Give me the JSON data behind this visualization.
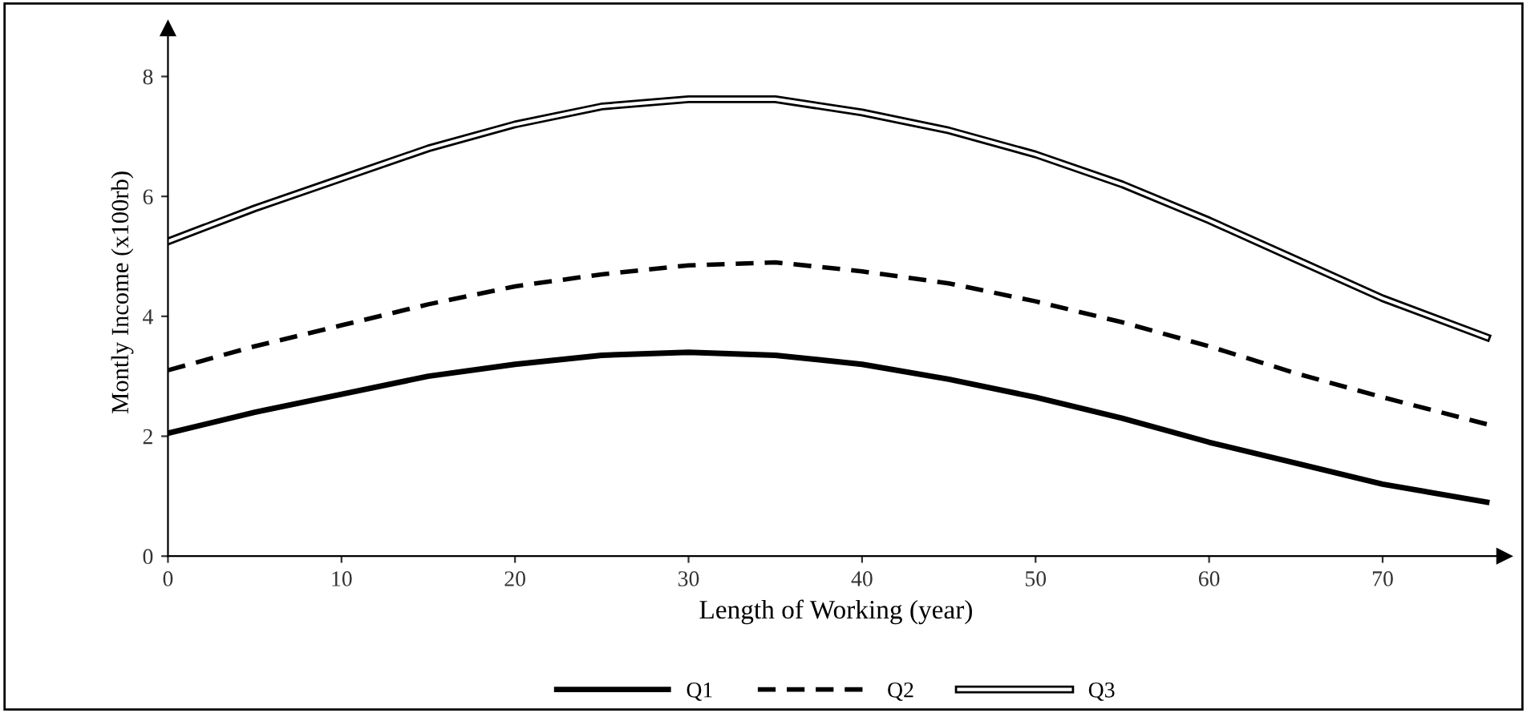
{
  "chart_data": {
    "type": "line",
    "xlabel": "Length of Working (year)",
    "ylabel": "Montly Income (x100rb)",
    "xlim": [
      0,
      77
    ],
    "xticks": [
      0,
      10,
      20,
      30,
      40,
      50,
      60,
      70
    ],
    "ylim": [
      0,
      8.8
    ],
    "yticks": [
      0,
      2,
      4,
      6,
      8
    ],
    "grid": false,
    "legend": "bottom",
    "marker": "none",
    "x": [
      0,
      5,
      10,
      15,
      20,
      25,
      30,
      35,
      40,
      45,
      50,
      55,
      60,
      65,
      70,
      76
    ],
    "series": [
      {
        "name": "Q1",
        "color": "#000000",
        "line_style": "solid",
        "values": [
          2.05,
          2.4,
          2.7,
          3.0,
          3.2,
          3.35,
          3.4,
          3.35,
          3.2,
          2.95,
          2.65,
          2.3,
          1.9,
          1.55,
          1.2,
          0.9
        ]
      },
      {
        "name": "Q2",
        "color": "#000000",
        "line_style": "dashed",
        "values": [
          3.1,
          3.5,
          3.85,
          4.2,
          4.5,
          4.7,
          4.85,
          4.9,
          4.75,
          4.55,
          4.25,
          3.9,
          3.5,
          3.05,
          2.65,
          2.2
        ]
      },
      {
        "name": "Q3",
        "color": "#000000",
        "line_style": "solid",
        "values": [
          5.25,
          5.8,
          6.3,
          6.8,
          7.2,
          7.5,
          7.62,
          7.62,
          7.4,
          7.1,
          6.7,
          6.2,
          5.6,
          4.95,
          4.3,
          3.65
        ]
      }
    ]
  }
}
